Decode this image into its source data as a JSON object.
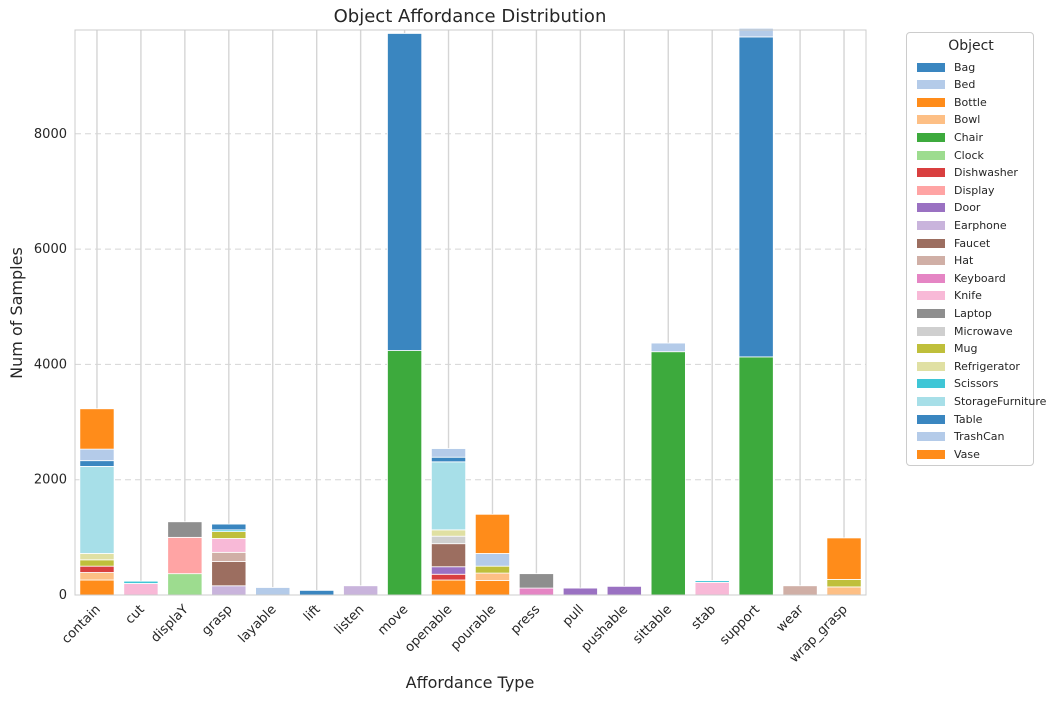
{
  "chart_data": {
    "type": "bar",
    "stacked": true,
    "title": "Object Affordance Distribution",
    "xlabel": "Affordance Type",
    "ylabel": "Num of Samples",
    "ylim": [
      0,
      9800
    ],
    "yticks": [
      0,
      2000,
      4000,
      6000,
      8000
    ],
    "grid": "y-dashed",
    "legend_placement": "outside-right",
    "legend_title": "Object",
    "categories": [
      "contain",
      "cut",
      "displaY",
      "grasp",
      "layable",
      "lift",
      "listen",
      "move",
      "openable",
      "pourable",
      "press",
      "pull",
      "pushable",
      "sittable",
      "stab",
      "support",
      "wear",
      "wrap_grasp"
    ],
    "series": [
      {
        "name": "Bag",
        "color": "#3a86c0",
        "values": [
          0,
          0,
          0,
          0,
          0,
          0,
          0,
          0,
          0,
          0,
          0,
          0,
          0,
          0,
          0,
          0,
          0,
          0
        ]
      },
      {
        "name": "Bed",
        "color": "#b4cbe9",
        "values": [
          0,
          0,
          0,
          0,
          0,
          0,
          0,
          0,
          0,
          0,
          0,
          0,
          0,
          0,
          0,
          0,
          0,
          0
        ]
      },
      {
        "name": "Bottle",
        "color": "#ff8c1a",
        "values": [
          260,
          0,
          0,
          0,
          0,
          0,
          0,
          0,
          260,
          250,
          0,
          0,
          0,
          0,
          0,
          0,
          0,
          0
        ]
      },
      {
        "name": "Bowl",
        "color": "#fdbf85",
        "values": [
          130,
          0,
          0,
          0,
          0,
          0,
          0,
          0,
          0,
          130,
          0,
          0,
          0,
          0,
          0,
          0,
          0,
          140
        ]
      },
      {
        "name": "Chair",
        "color": "#3daa3d",
        "values": [
          0,
          0,
          0,
          0,
          0,
          0,
          0,
          4240,
          0,
          0,
          0,
          0,
          0,
          4220,
          0,
          4130,
          0,
          0
        ]
      },
      {
        "name": "Clock",
        "color": "#9ddc8f",
        "values": [
          0,
          0,
          370,
          0,
          0,
          0,
          0,
          0,
          0,
          0,
          0,
          0,
          0,
          0,
          0,
          0,
          0,
          0
        ]
      },
      {
        "name": "Dishwasher",
        "color": "#d93f3f",
        "values": [
          110,
          0,
          0,
          0,
          0,
          0,
          0,
          0,
          100,
          0,
          0,
          0,
          0,
          0,
          0,
          0,
          0,
          0
        ]
      },
      {
        "name": "Display",
        "color": "#ffa4a4",
        "values": [
          0,
          0,
          630,
          0,
          0,
          0,
          0,
          0,
          0,
          0,
          0,
          0,
          0,
          0,
          0,
          0,
          0,
          0
        ]
      },
      {
        "name": "Door",
        "color": "#9a71c2",
        "values": [
          0,
          0,
          0,
          0,
          0,
          0,
          0,
          0,
          130,
          0,
          0,
          120,
          150,
          0,
          0,
          0,
          0,
          0
        ]
      },
      {
        "name": "Earphone",
        "color": "#c9b4dc",
        "values": [
          0,
          0,
          0,
          160,
          0,
          0,
          160,
          0,
          0,
          0,
          0,
          0,
          0,
          0,
          0,
          0,
          0,
          0
        ]
      },
      {
        "name": "Faucet",
        "color": "#9c6e60",
        "values": [
          0,
          0,
          0,
          420,
          0,
          0,
          0,
          0,
          400,
          0,
          0,
          0,
          0,
          0,
          0,
          0,
          0,
          0
        ]
      },
      {
        "name": "Hat",
        "color": "#d0afa6",
        "values": [
          0,
          0,
          0,
          160,
          0,
          0,
          0,
          0,
          0,
          0,
          0,
          0,
          0,
          0,
          0,
          0,
          160,
          0
        ]
      },
      {
        "name": "Keyboard",
        "color": "#e585c4",
        "values": [
          0,
          0,
          0,
          0,
          0,
          0,
          0,
          0,
          0,
          0,
          120,
          0,
          0,
          0,
          0,
          0,
          0,
          0
        ]
      },
      {
        "name": "Knife",
        "color": "#f8b9d7",
        "values": [
          0,
          200,
          0,
          240,
          0,
          0,
          0,
          0,
          0,
          0,
          0,
          0,
          0,
          0,
          220,
          0,
          0,
          0
        ]
      },
      {
        "name": "Laptop",
        "color": "#8e8e8e",
        "values": [
          0,
          0,
          270,
          0,
          0,
          0,
          0,
          0,
          0,
          0,
          250,
          0,
          0,
          0,
          0,
          0,
          0,
          0
        ]
      },
      {
        "name": "Microwave",
        "color": "#cfcfcf",
        "values": [
          0,
          0,
          0,
          0,
          0,
          0,
          0,
          0,
          130,
          0,
          0,
          0,
          0,
          0,
          0,
          0,
          0,
          0
        ]
      },
      {
        "name": "Mug",
        "color": "#bfbf3b",
        "values": [
          110,
          0,
          0,
          120,
          0,
          0,
          0,
          0,
          0,
          120,
          0,
          0,
          0,
          0,
          0,
          0,
          0,
          130
        ]
      },
      {
        "name": "Refrigerator",
        "color": "#e0e0a3",
        "values": [
          110,
          0,
          0,
          0,
          0,
          0,
          0,
          0,
          110,
          0,
          0,
          0,
          0,
          0,
          0,
          0,
          0,
          0
        ]
      },
      {
        "name": "Scissors",
        "color": "#3fc6d6",
        "values": [
          0,
          40,
          0,
          30,
          0,
          0,
          0,
          0,
          0,
          0,
          0,
          0,
          0,
          0,
          30,
          0,
          0,
          0
        ]
      },
      {
        "name": "StorageFurniture",
        "color": "#a7dfe8",
        "values": [
          1510,
          0,
          0,
          0,
          0,
          0,
          0,
          0,
          1180,
          0,
          0,
          0,
          0,
          0,
          0,
          0,
          0,
          0
        ]
      },
      {
        "name": "Table",
        "color": "#3a86c0",
        "values": [
          100,
          0,
          0,
          100,
          0,
          80,
          0,
          5500,
          80,
          0,
          0,
          0,
          0,
          0,
          0,
          5550,
          0,
          0
        ]
      },
      {
        "name": "TrashCan",
        "color": "#b4cbe9",
        "values": [
          200,
          0,
          0,
          0,
          130,
          0,
          0,
          0,
          150,
          220,
          0,
          0,
          0,
          150,
          0,
          150,
          0,
          0
        ]
      },
      {
        "name": "Vase",
        "color": "#ff8c1a",
        "values": [
          700,
          0,
          0,
          0,
          0,
          0,
          0,
          0,
          0,
          680,
          0,
          0,
          0,
          0,
          0,
          0,
          0,
          720
        ]
      }
    ]
  }
}
